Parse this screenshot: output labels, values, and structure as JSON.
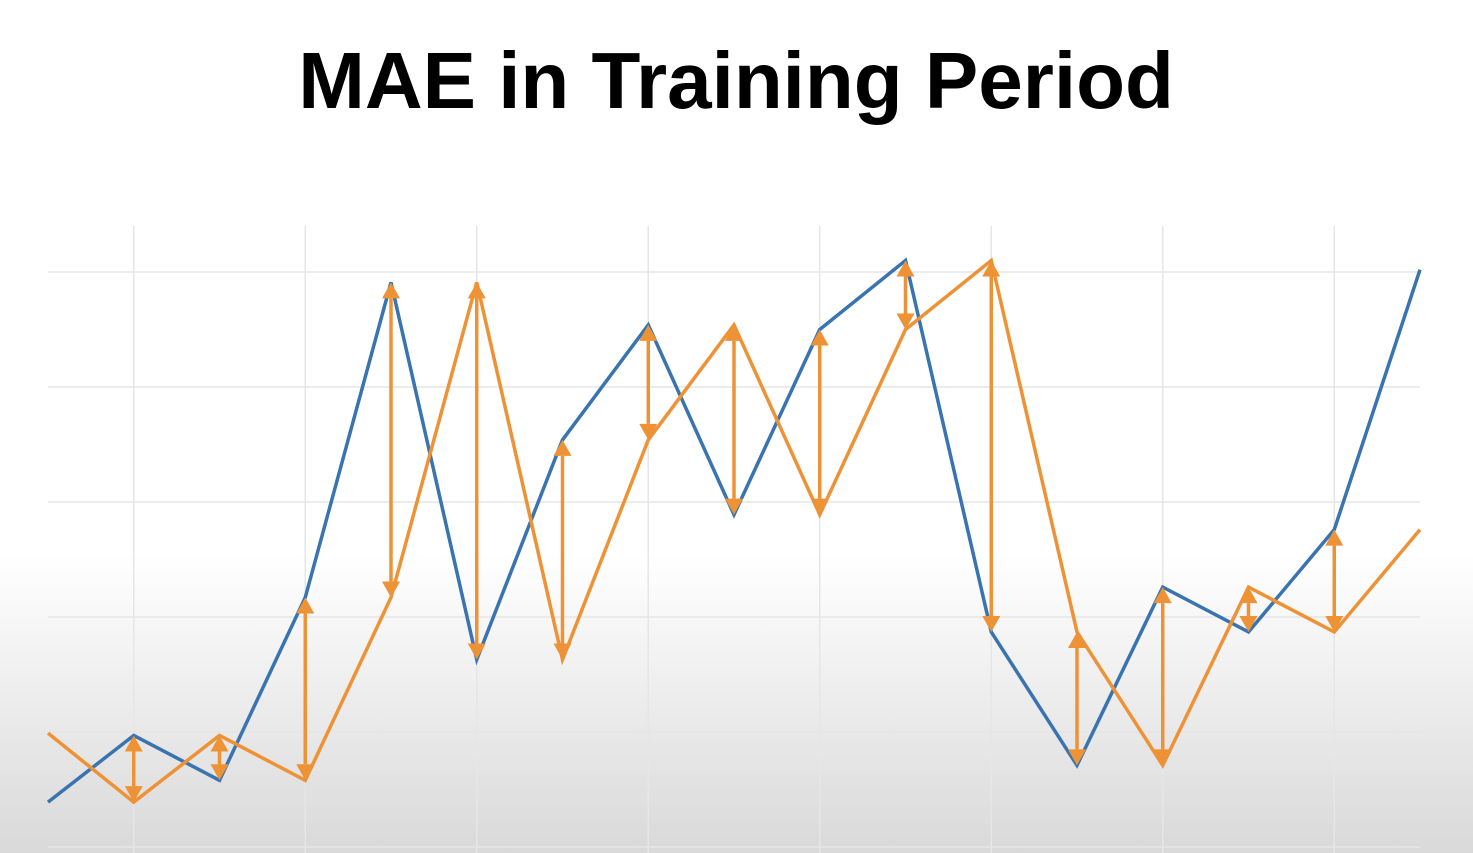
{
  "chart_data": {
    "type": "line",
    "title": "MAE in Training Period",
    "x": [
      0,
      1,
      2,
      3,
      4,
      5,
      6,
      7,
      8,
      9,
      10,
      11,
      12,
      13,
      14,
      15,
      16
    ],
    "xlim": [
      0,
      16
    ],
    "xticks": [
      1,
      3,
      5,
      7,
      9,
      11,
      13,
      15
    ],
    "ylim": [
      0,
      5.4
    ],
    "yticks": [
      0,
      1,
      2,
      3,
      4,
      5
    ],
    "grid": true,
    "series": [
      {
        "color": "#3a74b0",
        "values": [
          0.39,
          0.97,
          0.58,
          2.17,
          4.91,
          1.63,
          3.54,
          4.54,
          2.89,
          4.5,
          5.1,
          1.87,
          0.71,
          2.26,
          1.87,
          2.76,
          5.02
        ]
      },
      {
        "color": "#ee9236",
        "values": [
          0.99,
          0.39,
          0.97,
          0.58,
          2.17,
          4.91,
          1.63,
          3.54,
          4.54,
          2.89,
          4.5,
          5.1,
          1.87,
          0.71,
          2.26,
          1.87,
          2.76
        ]
      }
    ]
  }
}
